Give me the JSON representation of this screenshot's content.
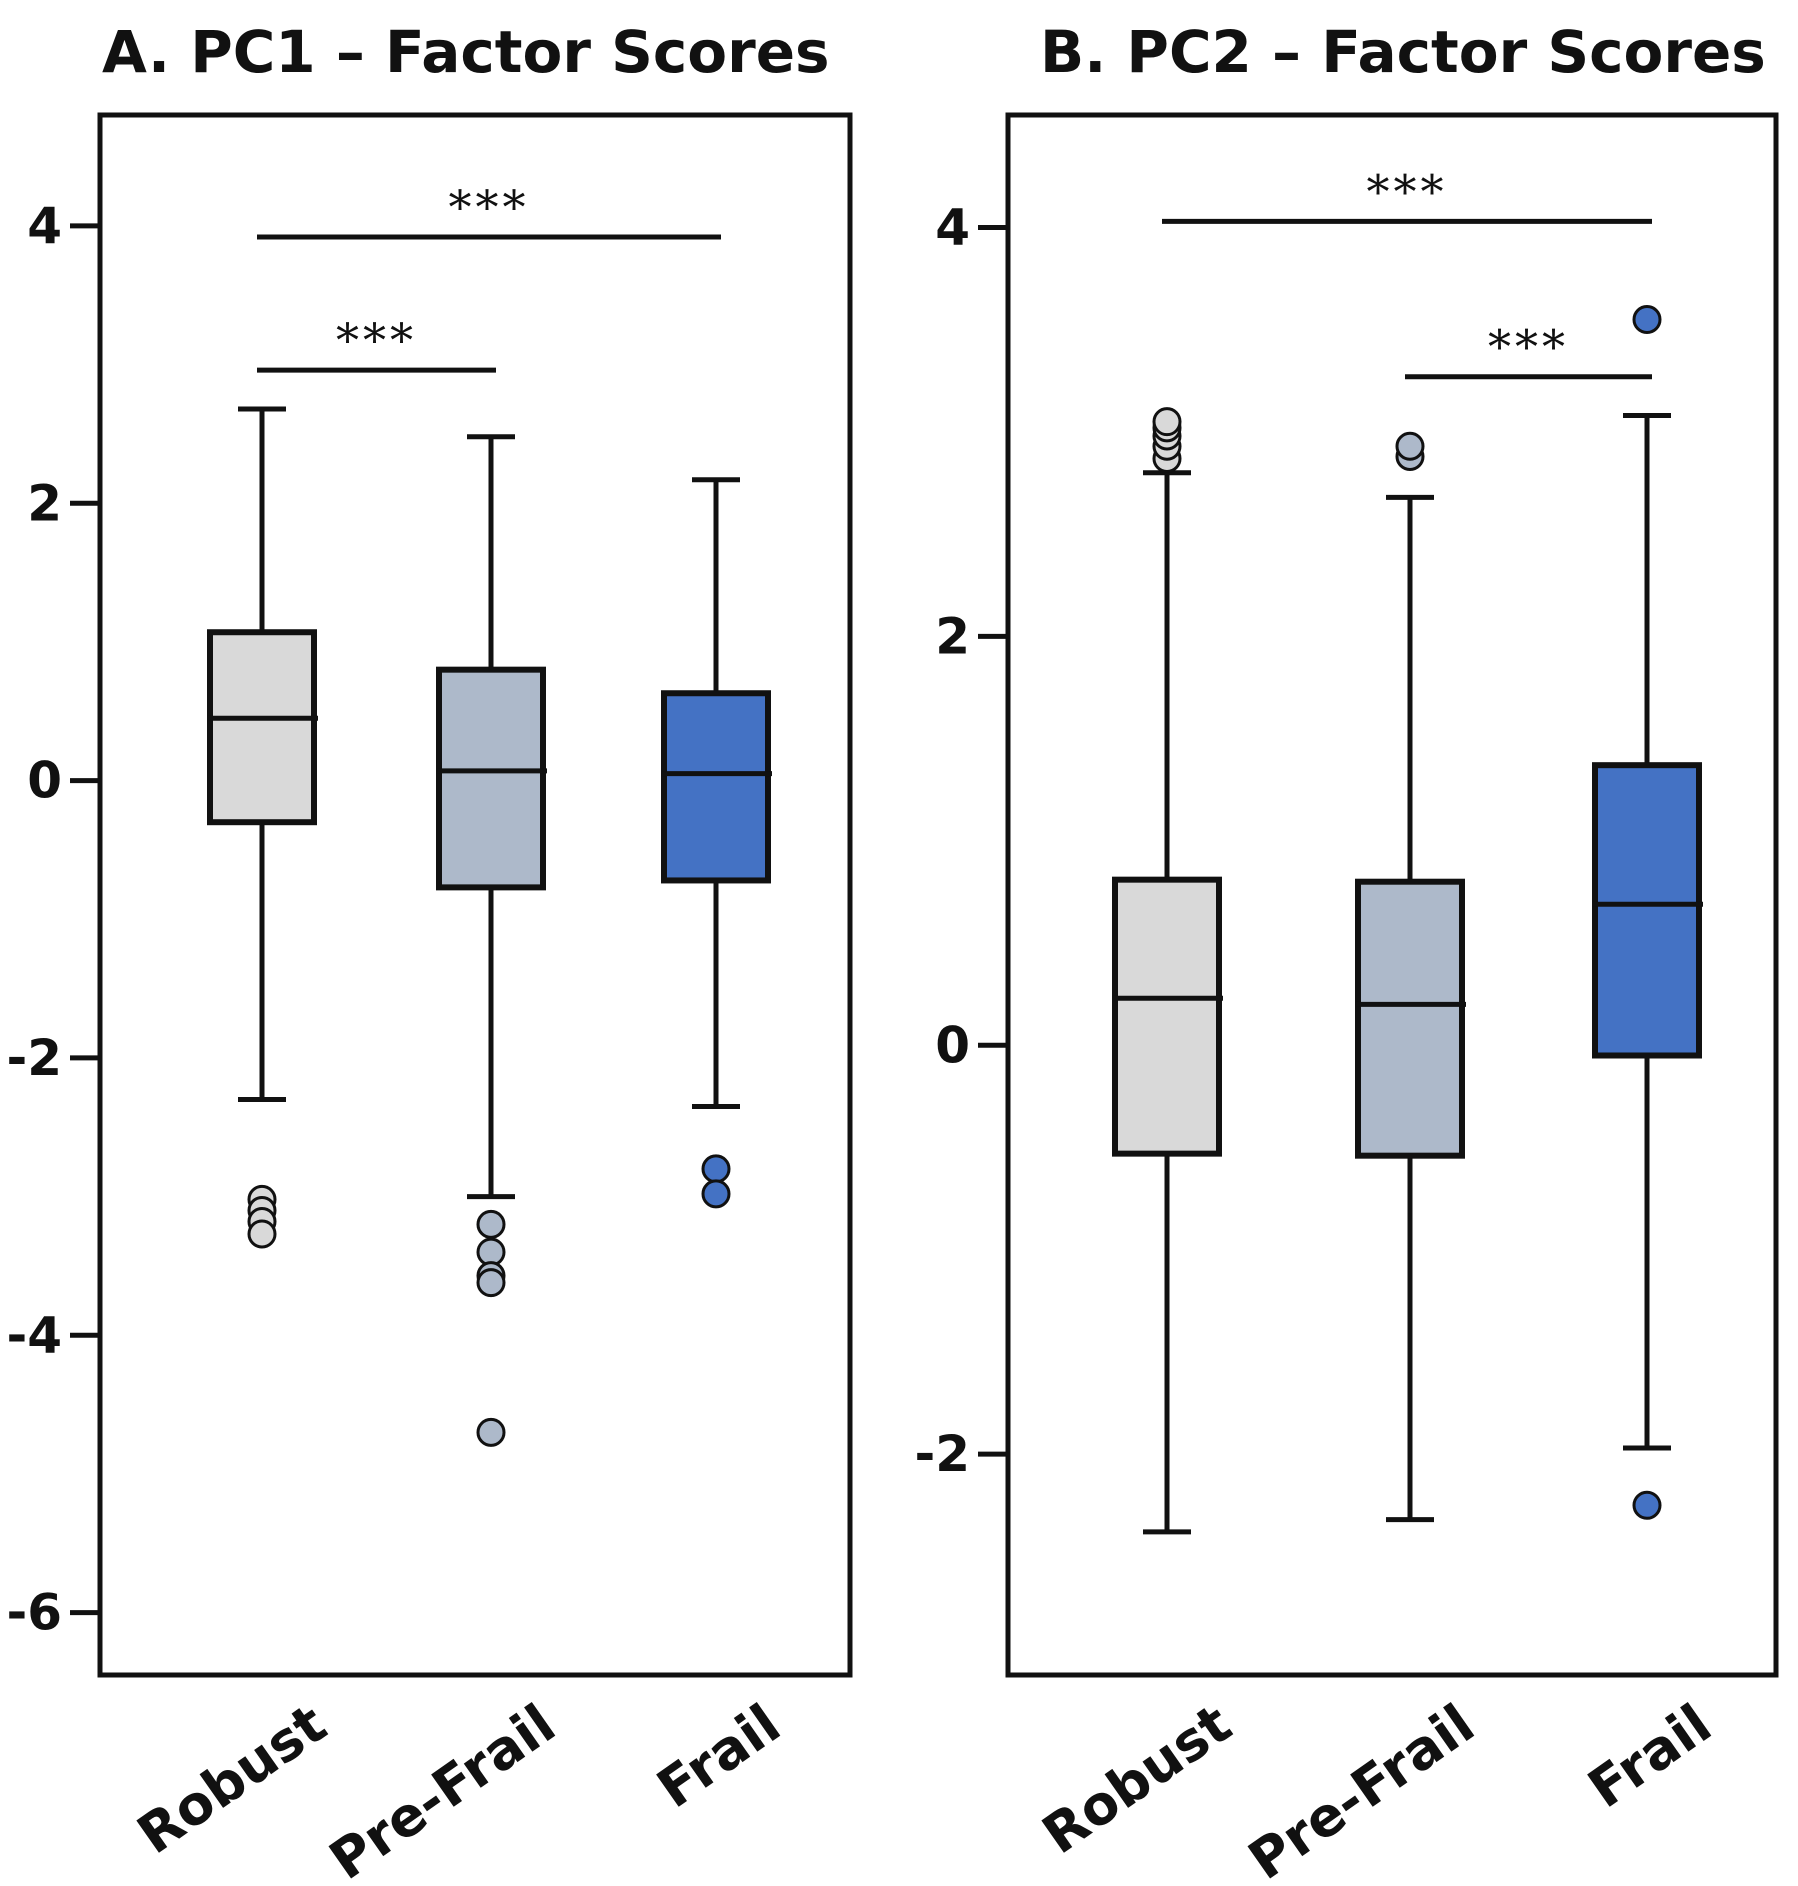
{
  "chart_data": [
    {
      "type": "box",
      "title": "A. PC1 – Factor Scores",
      "categories": [
        "Robust",
        "Pre-Frail",
        "Frail"
      ],
      "ylim": [
        -6.45,
        4.8
      ],
      "yticks": [
        4,
        2,
        0,
        -2,
        -4,
        -6
      ],
      "ytick_labels": [
        "4",
        "2",
        "0",
        "-2",
        "-4",
        "-6"
      ],
      "grid": false,
      "boxes": [
        {
          "category": "Robust",
          "color": "#d9d9d9",
          "whisker_low": -2.3,
          "q1": -0.3,
          "median": 0.45,
          "q3": 1.07,
          "whisker_high": 2.68,
          "outliers": [
            -3.02,
            -3.1,
            -3.18,
            -3.27
          ]
        },
        {
          "category": "Pre-Frail",
          "color": "#adb9ca",
          "whisker_low": -3.0,
          "q1": -0.77,
          "median": 0.07,
          "q3": 0.8,
          "whisker_high": 2.48,
          "outliers": [
            -3.2,
            -3.4,
            -3.57,
            -3.62,
            -4.7
          ]
        },
        {
          "category": "Frail",
          "color": "#4472c4",
          "whisker_low": -2.35,
          "q1": -0.72,
          "median": 0.05,
          "q3": 0.63,
          "whisker_high": 2.17,
          "outliers": [
            -2.8,
            -2.98
          ]
        }
      ],
      "significance": [
        {
          "from": "Robust",
          "to": "Frail",
          "y": 3.92,
          "label": "***"
        },
        {
          "from": "Robust",
          "to": "Pre-Frail",
          "y": 2.96,
          "label": "***"
        }
      ]
    },
    {
      "type": "box",
      "title": "B. PC2 – Factor Scores",
      "categories": [
        "Robust",
        "Pre-Frail",
        "Frail"
      ],
      "ylim": [
        -3.08,
        4.55
      ],
      "yticks": [
        4,
        2,
        0,
        -2
      ],
      "ytick_labels": [
        "4",
        "2",
        "0",
        "-2"
      ],
      "grid": false,
      "boxes": [
        {
          "category": "Robust",
          "color": "#d9d9d9",
          "whisker_low": -2.38,
          "q1": -0.53,
          "median": 0.23,
          "q3": 0.81,
          "whisker_high": 2.8,
          "outliers": [
            2.87,
            2.93,
            2.98,
            3.02,
            3.05
          ]
        },
        {
          "category": "Pre-Frail",
          "color": "#adb9ca",
          "whisker_low": -2.32,
          "q1": -0.54,
          "median": 0.2,
          "q3": 0.8,
          "whisker_high": 2.68,
          "outliers": [
            2.88,
            2.93
          ]
        },
        {
          "category": "Frail",
          "color": "#4472c4",
          "whisker_low": -1.97,
          "q1": -0.05,
          "median": 0.69,
          "q3": 1.37,
          "whisker_high": 3.08,
          "outliers": [
            3.55,
            -2.25
          ]
        }
      ],
      "significance": [
        {
          "from": "Robust",
          "to": "Frail",
          "y": 4.03,
          "label": "***"
        },
        {
          "from": "Pre-Frail",
          "to": "Frail",
          "y": 3.27,
          "label": "***"
        }
      ]
    }
  ]
}
